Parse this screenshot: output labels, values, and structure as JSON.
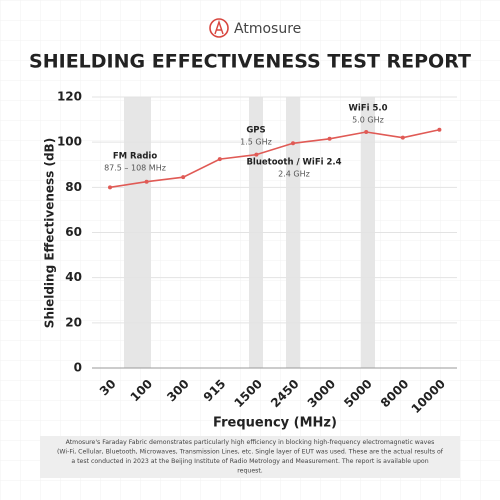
{
  "brand": "Atmosure",
  "chart_data": {
    "type": "line",
    "title": "SHIELDING EFFECTIVENESS TEST REPORT",
    "x_label": "Frequency (MHz)",
    "y_label": "Shielding Effectiveness (dB)",
    "categories": [
      "30",
      "100",
      "300",
      "915",
      "1500",
      "2450",
      "3000",
      "5000",
      "8000",
      "10000"
    ],
    "series": [
      {
        "name": "Shielding Effectiveness",
        "color": "#e05a55",
        "values": [
          80,
          82.5,
          84.5,
          92.5,
          94.5,
          99.5,
          101.5,
          104.5,
          102,
          105.5
        ]
      }
    ],
    "ylim": [
      0,
      120
    ],
    "yticks": [
      0,
      20,
      40,
      60,
      80,
      100,
      120
    ],
    "grid": true,
    "annotations": [
      {
        "label": "FM Radio",
        "sublabel": "87.5 – 108 MHz"
      },
      {
        "label": "GPS",
        "sublabel": "1.5 GHz"
      },
      {
        "label": "Bluetooth / WiFi 2.4",
        "sublabel": "2.4 GHz"
      },
      {
        "label": "WiFi 5.0",
        "sublabel": "5.0 GHz"
      }
    ]
  },
  "footer": {
    "lines": [
      "Atmosure's Faraday Fabric demonstrates particularly high efficiency in blocking high-frequency electromagnetic waves",
      "(Wi-Fi, Cellular, Bluetooth, Microwaves, Transmission Lines, etc. Single layer of EUT was used. These are the actual results of",
      "a test conducted in 2023 at the Beijing Institute of Radio Metrology and Measurement. The report is available upon",
      "request."
    ]
  }
}
